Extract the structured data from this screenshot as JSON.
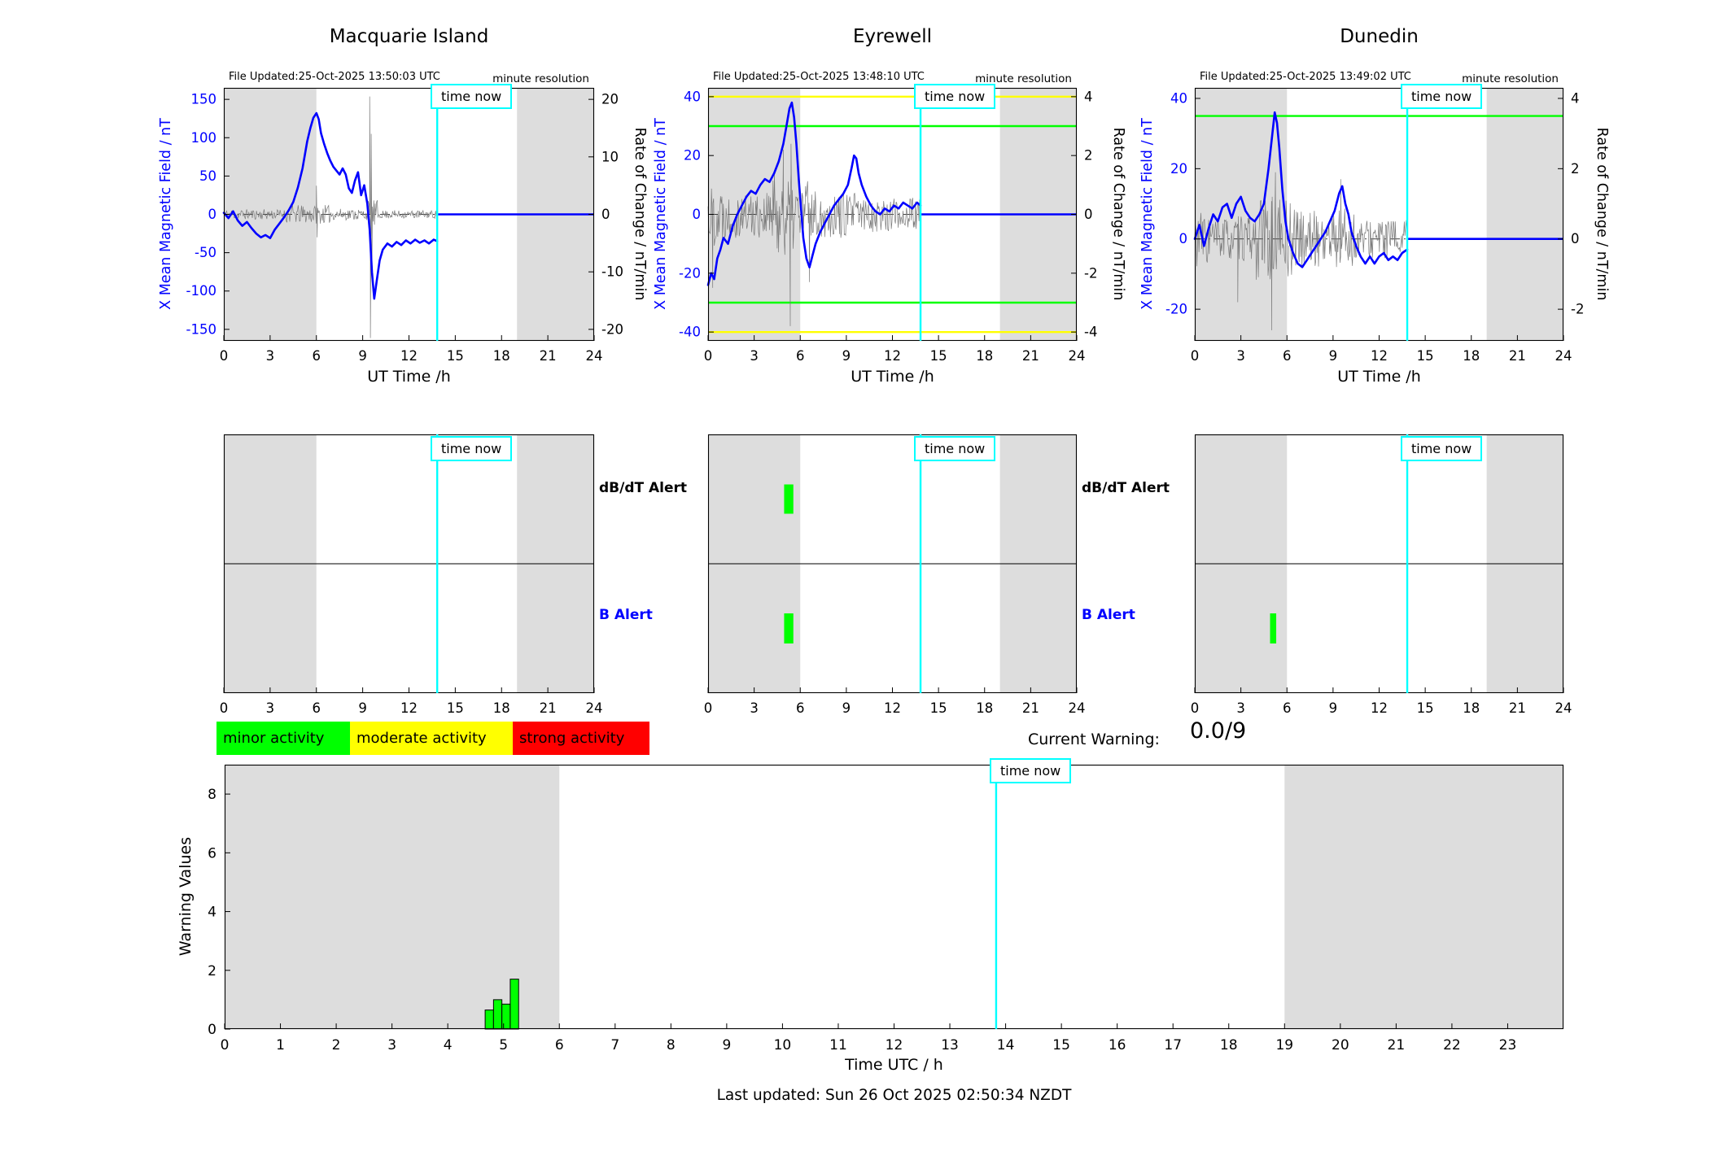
{
  "labels": {
    "time_now": "time now",
    "minute_resolution": "minute resolution",
    "dbdt_alert": "dB/dT Alert",
    "b_alert": "B Alert",
    "current_warning": "Current Warning:",
    "current_warning_value": "0.0/9",
    "last_updated": "Last updated: Sun 26 Oct 2025 02:50:34 NZDT"
  },
  "legend": [
    {
      "label": "minor activity",
      "color": "#00ff00"
    },
    {
      "label": "moderate activity",
      "color": "#ffff00"
    },
    {
      "label": "strong activity",
      "color": "#ff0000"
    }
  ],
  "colors": {
    "series_blue": "#0000ff",
    "time_now_cyan": "#00ffff",
    "shaded_band": "#dddddd",
    "noise_gray": "#7a7a7a",
    "alert_green": "#00ff00"
  },
  "chart_data": [
    {
      "type": "line",
      "station": "Macquarie Island",
      "file_updated": "File Updated:25-Oct-2025 13:50:03 UTC",
      "xlabel": "UT Time /h",
      "xlim": [
        0,
        24
      ],
      "x_ticks": [
        0,
        3,
        6,
        9,
        12,
        15,
        18,
        21,
        24
      ],
      "ylabel_left": "X Mean Magnetic Field / nT",
      "ylim_left": [
        -165,
        165
      ],
      "yticks_left": [
        150,
        100,
        50,
        0,
        -50,
        -100,
        -150
      ],
      "ylabel_right": "Rate of Change / nT/min",
      "ylim_right": [
        -22,
        22
      ],
      "yticks_right": [
        20,
        10,
        0,
        -10,
        -20
      ],
      "time_now": 13.83,
      "shaded_hours": [
        [
          0,
          6
        ],
        [
          19,
          24
        ]
      ],
      "thresholds": [],
      "flat_value": 0,
      "series": [
        [
          0,
          2
        ],
        [
          0.3,
          -5
        ],
        [
          0.6,
          4
        ],
        [
          0.9,
          -8
        ],
        [
          1.2,
          -15
        ],
        [
          1.5,
          -10
        ],
        [
          1.8,
          -18
        ],
        [
          2.1,
          -25
        ],
        [
          2.4,
          -30
        ],
        [
          2.7,
          -27
        ],
        [
          3,
          -31
        ],
        [
          3.3,
          -20
        ],
        [
          3.6,
          -12
        ],
        [
          3.9,
          -4
        ],
        [
          4.2,
          5
        ],
        [
          4.5,
          16
        ],
        [
          4.8,
          35
        ],
        [
          5.1,
          60
        ],
        [
          5.4,
          95
        ],
        [
          5.6,
          112
        ],
        [
          5.8,
          126
        ],
        [
          6,
          132
        ],
        [
          6.15,
          124
        ],
        [
          6.3,
          106
        ],
        [
          6.5,
          92
        ],
        [
          6.7,
          80
        ],
        [
          6.9,
          70
        ],
        [
          7.1,
          62
        ],
        [
          7.3,
          57
        ],
        [
          7.5,
          52
        ],
        [
          7.7,
          60
        ],
        [
          7.9,
          52
        ],
        [
          8.1,
          34
        ],
        [
          8.3,
          28
        ],
        [
          8.5,
          44
        ],
        [
          8.7,
          55
        ],
        [
          8.9,
          25
        ],
        [
          9.1,
          38
        ],
        [
          9.3,
          14
        ],
        [
          9.45,
          -20
        ],
        [
          9.6,
          -75
        ],
        [
          9.75,
          -110
        ],
        [
          9.9,
          -88
        ],
        [
          10.1,
          -60
        ],
        [
          10.3,
          -46
        ],
        [
          10.6,
          -38
        ],
        [
          10.9,
          -42
        ],
        [
          11.2,
          -36
        ],
        [
          11.5,
          -40
        ],
        [
          11.8,
          -34
        ],
        [
          12.1,
          -38
        ],
        [
          12.4,
          -33
        ],
        [
          12.7,
          -37
        ],
        [
          13,
          -34
        ],
        [
          13.3,
          -38
        ],
        [
          13.6,
          -33
        ],
        [
          13.83,
          -35
        ]
      ],
      "noise_seed": 11,
      "noise_envelope": [
        [
          0,
          4,
          0.9
        ],
        [
          4,
          7,
          1.6
        ],
        [
          7,
          9.3,
          1.0
        ],
        [
          9.3,
          10,
          2.5
        ],
        [
          10,
          13.9,
          0.7
        ]
      ],
      "noise_spikes": [
        [
          6.0,
          5
        ],
        [
          6.05,
          -4
        ],
        [
          9.45,
          20.5
        ],
        [
          9.5,
          -21.5
        ],
        [
          9.55,
          14
        ],
        [
          9.6,
          -9
        ]
      ],
      "alert_bars": {
        "dbdt": [],
        "b": []
      }
    },
    {
      "type": "line",
      "station": "Eyrewell",
      "file_updated": "File Updated:25-Oct-2025 13:48:10 UTC",
      "xlabel": "UT Time /h",
      "xlim": [
        0,
        24
      ],
      "x_ticks": [
        0,
        3,
        6,
        9,
        12,
        15,
        18,
        21,
        24
      ],
      "ylabel_left": "X Mean Magnetic Field / nT",
      "ylim_left": [
        -43,
        43
      ],
      "yticks_left": [
        40,
        20,
        0,
        -20,
        -40
      ],
      "ylabel_right": "Rate of Change / nT/min",
      "ylim_right": [
        -4.3,
        4.3
      ],
      "yticks_right": [
        4,
        2,
        0,
        -2,
        -4
      ],
      "time_now": 13.83,
      "shaded_hours": [
        [
          0,
          6
        ],
        [
          19,
          24
        ]
      ],
      "thresholds": [
        {
          "value": 4,
          "color": "#ffff00"
        },
        {
          "value": 3,
          "color": "#00ff00"
        },
        {
          "value": -3,
          "color": "#00ff00"
        },
        {
          "value": -4,
          "color": "#ffff00"
        }
      ],
      "flat_value": 0,
      "series": [
        [
          0,
          -24
        ],
        [
          0.2,
          -20
        ],
        [
          0.4,
          -22
        ],
        [
          0.6,
          -15
        ],
        [
          0.8,
          -12
        ],
        [
          1,
          -8
        ],
        [
          1.3,
          -10
        ],
        [
          1.6,
          -4
        ],
        [
          1.9,
          0
        ],
        [
          2.2,
          3
        ],
        [
          2.5,
          6
        ],
        [
          2.8,
          8
        ],
        [
          3.1,
          7
        ],
        [
          3.4,
          10
        ],
        [
          3.7,
          12
        ],
        [
          4,
          11
        ],
        [
          4.3,
          14
        ],
        [
          4.6,
          18
        ],
        [
          4.9,
          24
        ],
        [
          5.1,
          30
        ],
        [
          5.3,
          36
        ],
        [
          5.45,
          38
        ],
        [
          5.6,
          33
        ],
        [
          5.75,
          24
        ],
        [
          5.9,
          12
        ],
        [
          6.05,
          2
        ],
        [
          6.2,
          -8
        ],
        [
          6.4,
          -15
        ],
        [
          6.6,
          -18
        ],
        [
          6.8,
          -14
        ],
        [
          7,
          -10
        ],
        [
          7.3,
          -6
        ],
        [
          7.6,
          -3
        ],
        [
          7.9,
          0
        ],
        [
          8.2,
          3
        ],
        [
          8.5,
          5
        ],
        [
          8.8,
          7
        ],
        [
          9.1,
          10
        ],
        [
          9.35,
          16
        ],
        [
          9.5,
          20
        ],
        [
          9.65,
          19
        ],
        [
          9.8,
          14
        ],
        [
          10,
          10
        ],
        [
          10.3,
          6
        ],
        [
          10.6,
          3
        ],
        [
          10.9,
          1
        ],
        [
          11.2,
          0
        ],
        [
          11.5,
          2
        ],
        [
          11.8,
          1
        ],
        [
          12.1,
          3
        ],
        [
          12.4,
          2
        ],
        [
          12.7,
          4
        ],
        [
          13,
          3
        ],
        [
          13.3,
          2
        ],
        [
          13.6,
          4
        ],
        [
          13.83,
          3
        ]
      ],
      "noise_seed": 22,
      "noise_envelope": [
        [
          0,
          1,
          1.1
        ],
        [
          1,
          4,
          0.8
        ],
        [
          4,
          6.5,
          1.4
        ],
        [
          6.5,
          10,
          0.8
        ],
        [
          10,
          13.9,
          0.6
        ]
      ],
      "noise_spikes": [
        [
          0.3,
          -2.5
        ],
        [
          4.9,
          2.2
        ],
        [
          5.35,
          -3.8
        ],
        [
          5.4,
          2.4
        ],
        [
          6.6,
          -2.3
        ]
      ],
      "alert_bars": {
        "dbdt": [
          [
            4.95,
            5.55
          ]
        ],
        "b": [
          [
            4.95,
            5.55
          ]
        ]
      }
    },
    {
      "type": "line",
      "station": "Dunedin",
      "file_updated": "File Updated:25-Oct-2025 13:49:02 UTC",
      "xlabel": "UT Time /h",
      "xlim": [
        0,
        24
      ],
      "x_ticks": [
        0,
        3,
        6,
        9,
        12,
        15,
        18,
        21,
        24
      ],
      "ylabel_left": "X Mean Magnetic Field / nT",
      "ylim_left": [
        -29,
        43
      ],
      "yticks_left": [
        40,
        20,
        0,
        -20
      ],
      "ylabel_right": "Rate of Change / nT/min",
      "ylim_right": [
        -2.9,
        4.3
      ],
      "yticks_right": [
        4,
        2,
        0,
        -2
      ],
      "time_now": 13.83,
      "shaded_hours": [
        [
          0,
          6
        ],
        [
          19,
          24
        ]
      ],
      "thresholds": [
        {
          "value": 3.5,
          "color": "#00ff00"
        }
      ],
      "flat_value": 0,
      "series": [
        [
          0,
          0
        ],
        [
          0.3,
          4
        ],
        [
          0.6,
          -2
        ],
        [
          0.9,
          3
        ],
        [
          1.2,
          7
        ],
        [
          1.5,
          5
        ],
        [
          1.8,
          9
        ],
        [
          2.1,
          10
        ],
        [
          2.4,
          6
        ],
        [
          2.7,
          10
        ],
        [
          3,
          12
        ],
        [
          3.3,
          8
        ],
        [
          3.6,
          6
        ],
        [
          3.9,
          5
        ],
        [
          4.2,
          7
        ],
        [
          4.5,
          10
        ],
        [
          4.8,
          20
        ],
        [
          5,
          28
        ],
        [
          5.2,
          36
        ],
        [
          5.35,
          33
        ],
        [
          5.5,
          26
        ],
        [
          5.7,
          14
        ],
        [
          5.9,
          5
        ],
        [
          6.1,
          0
        ],
        [
          6.4,
          -4
        ],
        [
          6.7,
          -7
        ],
        [
          7,
          -8
        ],
        [
          7.3,
          -6
        ],
        [
          7.6,
          -4
        ],
        [
          7.9,
          -2
        ],
        [
          8.2,
          0
        ],
        [
          8.5,
          2
        ],
        [
          8.8,
          5
        ],
        [
          9.1,
          8
        ],
        [
          9.4,
          13
        ],
        [
          9.6,
          15
        ],
        [
          9.8,
          10
        ],
        [
          10,
          7
        ],
        [
          10.2,
          2
        ],
        [
          10.5,
          -2
        ],
        [
          10.8,
          -5
        ],
        [
          11.1,
          -7
        ],
        [
          11.4,
          -5
        ],
        [
          11.7,
          -7
        ],
        [
          12,
          -5
        ],
        [
          12.3,
          -4
        ],
        [
          12.6,
          -6
        ],
        [
          12.9,
          -5
        ],
        [
          13.2,
          -6
        ],
        [
          13.5,
          -4
        ],
        [
          13.83,
          -3
        ]
      ],
      "noise_seed": 33,
      "noise_envelope": [
        [
          0,
          1,
          0.8
        ],
        [
          1,
          4,
          0.65
        ],
        [
          4,
          6.5,
          1.2
        ],
        [
          6.5,
          9,
          0.8
        ],
        [
          9,
          10.5,
          1.0
        ],
        [
          10.5,
          13.9,
          0.55
        ]
      ],
      "noise_spikes": [
        [
          2.8,
          -1.8
        ],
        [
          5.0,
          -2.6
        ],
        [
          5.25,
          1.9
        ],
        [
          9.5,
          1.7
        ]
      ],
      "alert_bars": {
        "dbdt": [],
        "b": [
          [
            4.9,
            5.3
          ]
        ]
      }
    },
    {
      "type": "bar",
      "title": "Warning Values",
      "ylabel": "Warning Values",
      "xlabel": "Time UTC / h",
      "ylim": [
        0,
        9
      ],
      "yticks": [
        0,
        2,
        4,
        6,
        8
      ],
      "xlim": [
        0,
        24
      ],
      "x_ticks": [
        0,
        1,
        2,
        3,
        4,
        5,
        6,
        7,
        8,
        9,
        10,
        11,
        12,
        13,
        14,
        15,
        16,
        17,
        18,
        19,
        20,
        21,
        22,
        23
      ],
      "time_now": 13.83,
      "shaded_hours": [
        [
          0,
          6
        ],
        [
          19,
          24
        ]
      ],
      "bar_width": 0.15,
      "bar_color": "#00ff00",
      "bars": [
        {
          "x": 4.67,
          "h": 0.65
        },
        {
          "x": 4.82,
          "h": 1.0
        },
        {
          "x": 4.97,
          "h": 0.85
        },
        {
          "x": 5.12,
          "h": 1.7
        }
      ]
    }
  ]
}
